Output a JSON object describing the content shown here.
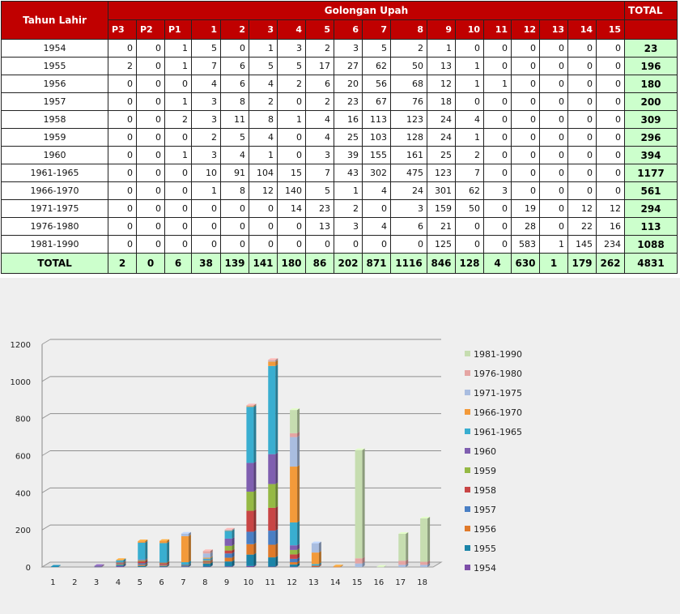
{
  "table": {
    "header_year": "Tahun Lahir",
    "header_group": "Golongan Upah",
    "header_total": "TOTAL",
    "columns": [
      "P3",
      "P2",
      "P1",
      "1",
      "2",
      "3",
      "4",
      "5",
      "6",
      "7",
      "8",
      "9",
      "10",
      "11",
      "12",
      "13",
      "14",
      "15"
    ],
    "rows": [
      {
        "year": "1954",
        "values": [
          0,
          0,
          1,
          5,
          0,
          1,
          3,
          2,
          3,
          5,
          2,
          1,
          0,
          0,
          0,
          0,
          0,
          0
        ],
        "total": "23"
      },
      {
        "year": "1955",
        "values": [
          2,
          0,
          1,
          7,
          6,
          5,
          5,
          17,
          27,
          62,
          50,
          13,
          1,
          0,
          0,
          0,
          0,
          0
        ],
        "total": "196"
      },
      {
        "year": "1956",
        "values": [
          0,
          0,
          0,
          4,
          6,
          4,
          2,
          6,
          20,
          56,
          68,
          12,
          1,
          1,
          0,
          0,
          0,
          0
        ],
        "total": "180"
      },
      {
        "year": "1957",
        "values": [
          0,
          0,
          1,
          3,
          8,
          2,
          0,
          2,
          23,
          67,
          76,
          18,
          0,
          0,
          0,
          0,
          0,
          0
        ],
        "total": "200"
      },
      {
        "year": "1958",
        "values": [
          0,
          0,
          2,
          3,
          11,
          8,
          1,
          4,
          16,
          113,
          123,
          24,
          4,
          0,
          0,
          0,
          0,
          0
        ],
        "total": "309"
      },
      {
        "year": "1959",
        "values": [
          0,
          0,
          0,
          2,
          5,
          4,
          0,
          4,
          25,
          103,
          128,
          24,
          1,
          0,
          0,
          0,
          0,
          0
        ],
        "total": "296"
      },
      {
        "year": "1960",
        "values": [
          0,
          0,
          1,
          3,
          4,
          1,
          0,
          3,
          39,
          155,
          161,
          25,
          2,
          0,
          0,
          0,
          0,
          0
        ],
        "total": "394"
      },
      {
        "year": "1961-1965",
        "values": [
          0,
          0,
          0,
          10,
          91,
          104,
          15,
          7,
          43,
          302,
          475,
          123,
          7,
          0,
          0,
          0,
          0,
          0
        ],
        "total": "1177"
      },
      {
        "year": "1966-1970",
        "values": [
          0,
          0,
          0,
          1,
          8,
          12,
          140,
          5,
          1,
          4,
          24,
          301,
          62,
          3,
          0,
          0,
          0,
          0
        ],
        "total": "561"
      },
      {
        "year": "1971-1975",
        "values": [
          0,
          0,
          0,
          0,
          0,
          0,
          14,
          23,
          2,
          0,
          3,
          159,
          50,
          0,
          19,
          0,
          12,
          12
        ],
        "total": "294"
      },
      {
        "year": "1976-1980",
        "values": [
          0,
          0,
          0,
          0,
          0,
          0,
          0,
          13,
          3,
          4,
          6,
          21,
          0,
          0,
          28,
          0,
          22,
          16
        ],
        "total": "113"
      },
      {
        "year": "1981-1990",
        "values": [
          0,
          0,
          0,
          0,
          0,
          0,
          0,
          0,
          0,
          0,
          0,
          125,
          0,
          0,
          583,
          1,
          145,
          234
        ],
        "total": "1088"
      }
    ],
    "total_row": {
      "label": "TOTAL",
      "values": [
        "2",
        "0",
        "6",
        "38",
        "139",
        "141",
        "180",
        "86",
        "202",
        "871",
        "1116",
        "846",
        "128",
        "4",
        "630",
        "1",
        "179",
        "262"
      ],
      "grand_total": "4831"
    }
  },
  "chart_data": {
    "type": "bar",
    "stacked": true,
    "three_d": true,
    "categories": [
      "1",
      "2",
      "3",
      "4",
      "5",
      "6",
      "7",
      "8",
      "9",
      "10",
      "11",
      "12",
      "13",
      "14",
      "15",
      "16",
      "17",
      "18"
    ],
    "ylim": [
      0,
      1200
    ],
    "yticks": [
      "0",
      "200",
      "400",
      "600",
      "800",
      "1000",
      "1200"
    ],
    "grid": true,
    "legend_position": "right",
    "series": [
      {
        "name": "1954",
        "color": "#7d4ea8",
        "values": [
          0,
          0,
          1,
          5,
          0,
          1,
          3,
          2,
          3,
          5,
          2,
          1,
          0,
          0,
          0,
          0,
          0,
          0
        ]
      },
      {
        "name": "1955",
        "color": "#1b84a8",
        "values": [
          2,
          0,
          1,
          7,
          6,
          5,
          5,
          17,
          27,
          62,
          50,
          13,
          1,
          0,
          0,
          0,
          0,
          0
        ]
      },
      {
        "name": "1956",
        "color": "#e07a2a",
        "values": [
          0,
          0,
          0,
          4,
          6,
          4,
          2,
          6,
          20,
          56,
          68,
          12,
          1,
          1,
          0,
          0,
          0,
          0
        ]
      },
      {
        "name": "1957",
        "color": "#4a7fc4",
        "values": [
          0,
          0,
          1,
          3,
          8,
          2,
          0,
          2,
          23,
          67,
          76,
          18,
          0,
          0,
          0,
          0,
          0,
          0
        ]
      },
      {
        "name": "1958",
        "color": "#c84545",
        "values": [
          0,
          0,
          2,
          3,
          11,
          8,
          1,
          4,
          16,
          113,
          123,
          24,
          4,
          0,
          0,
          0,
          0,
          0
        ]
      },
      {
        "name": "1959",
        "color": "#95b944",
        "values": [
          0,
          0,
          0,
          2,
          5,
          4,
          0,
          4,
          25,
          103,
          128,
          24,
          1,
          0,
          0,
          0,
          0,
          0
        ]
      },
      {
        "name": "1960",
        "color": "#7f5fb0",
        "values": [
          0,
          0,
          1,
          3,
          4,
          1,
          0,
          3,
          39,
          155,
          161,
          25,
          2,
          0,
          0,
          0,
          0,
          0
        ]
      },
      {
        "name": "1961-1965",
        "color": "#39aed0",
        "values": [
          0,
          0,
          0,
          10,
          91,
          104,
          15,
          7,
          43,
          302,
          475,
          123,
          7,
          0,
          0,
          0,
          0,
          0
        ]
      },
      {
        "name": "1966-1970",
        "color": "#f39a3a",
        "values": [
          0,
          0,
          0,
          1,
          8,
          12,
          140,
          5,
          1,
          4,
          24,
          301,
          62,
          3,
          0,
          0,
          0,
          0
        ]
      },
      {
        "name": "1971-1975",
        "color": "#a9bde0",
        "values": [
          0,
          0,
          0,
          0,
          0,
          0,
          14,
          23,
          2,
          0,
          3,
          159,
          50,
          0,
          19,
          0,
          12,
          12
        ]
      },
      {
        "name": "1976-1980",
        "color": "#e5a5a3",
        "values": [
          0,
          0,
          0,
          0,
          0,
          0,
          0,
          13,
          3,
          4,
          6,
          21,
          0,
          0,
          28,
          0,
          22,
          16
        ]
      },
      {
        "name": "1981-1990",
        "color": "#c6ddb0",
        "values": [
          0,
          0,
          0,
          0,
          0,
          0,
          0,
          0,
          0,
          0,
          0,
          125,
          0,
          0,
          583,
          1,
          145,
          234
        ]
      }
    ]
  }
}
